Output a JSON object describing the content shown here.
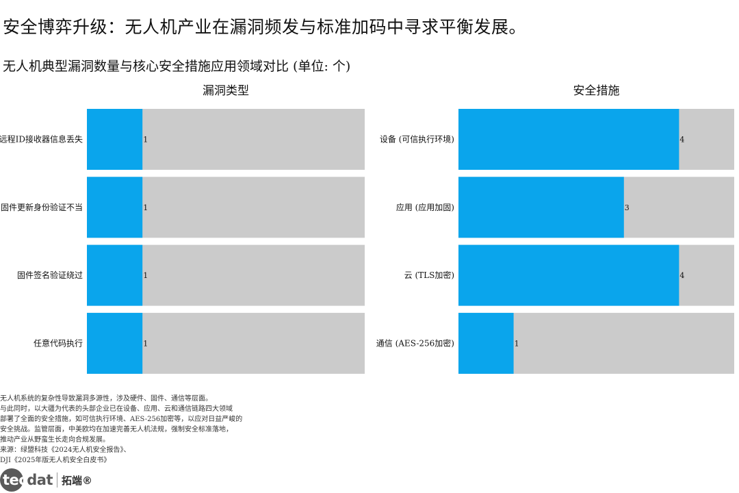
{
  "headline": "安全博弈升级：无人机产业在漏洞频发与标准加码中寻求平衡发展。",
  "subtitle": "无人机典型漏洞数量与核心安全措施应用领域对比 (单位: 个)",
  "colors": {
    "value_bar": "#0aa5ec",
    "track": "#cbcbcb"
  },
  "chart_data": [
    {
      "type": "bar",
      "orientation": "horizontal",
      "title": "漏洞类型",
      "categories": [
        "远程ID接收器信息丢失",
        "固件更新身份验证不当",
        "固件签名验证绕过",
        "任意代码执行"
      ],
      "values": [
        1,
        1,
        1,
        1
      ],
      "xlim": [
        0,
        5
      ],
      "grid": false,
      "legend": "none"
    },
    {
      "type": "bar",
      "orientation": "horizontal",
      "title": "安全措施",
      "categories": [
        "设备 (可信执行环境)",
        "应用 (应用加固)",
        "云 (TLS加密)",
        "通信 (AES-256加密)"
      ],
      "values": [
        4,
        3,
        4,
        1
      ],
      "xlim": [
        0,
        5
      ],
      "grid": false,
      "legend": "none"
    }
  ],
  "notes": [
    "无人机系统的复杂性导致漏洞多源性，涉及硬件、固件、通信等层面。",
    "与此同时，以大疆为代表的头部企业已在设备、应用、云和通信链路四大领域",
    "部署了全面的安全措施，如可信执行环境、AES-256加密等，以应对日益严峻的",
    "安全挑战。监管层面，中美欧均在加速完善无人机法规，强制安全标准落地，",
    "推动产业从野蛮生长走向合规发展。",
    "来源：绿盟科技《2024无人机安全报告》、",
    "DJI《2025年版无人机安全白皮书》"
  ],
  "logo": {
    "mark_part1": "tec",
    "mark_part2": "dat",
    "name_cn": "拓端®"
  }
}
